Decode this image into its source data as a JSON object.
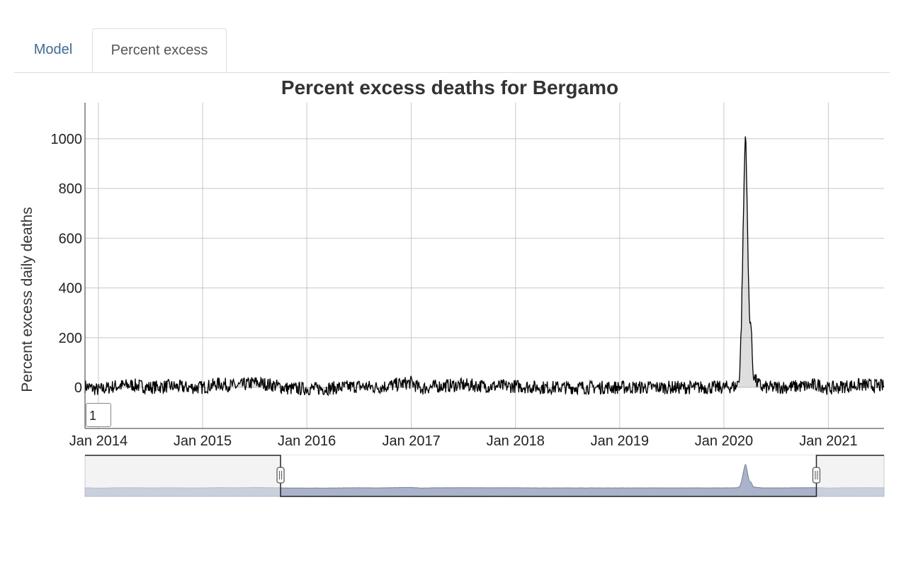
{
  "tabs": [
    {
      "label": "Model",
      "active": false
    },
    {
      "label": "Percent excess",
      "active": true
    }
  ],
  "roller_value": "1",
  "chart_data": {
    "type": "line",
    "title": "Percent excess deaths for Bergamo",
    "xlabel": "",
    "ylabel": "Percent excess daily deaths",
    "x_range": [
      "2013-11-15",
      "2021-07-15"
    ],
    "ylim": [
      -165,
      1145
    ],
    "grid": true,
    "fill_below": true,
    "x_ticks": [
      "Jan 2014",
      "Jan 2015",
      "Jan 2016",
      "Jan 2017",
      "Jan 2018",
      "Jan 2019",
      "Jan 2020",
      "Jan 2021"
    ],
    "x_tick_dates": [
      "2014-01-01",
      "2015-01-01",
      "2016-01-01",
      "2017-01-01",
      "2018-01-01",
      "2019-01-01",
      "2020-01-01",
      "2021-01-01"
    ],
    "y_ticks": [
      0,
      200,
      400,
      600,
      800,
      1000
    ],
    "series": [
      {
        "color": "#000000",
        "points": [
          [
            "2013-11-15",
            5
          ],
          [
            "2014-01-01",
            -10
          ],
          [
            "2014-03-01",
            5
          ],
          [
            "2014-05-01",
            10
          ],
          [
            "2014-07-01",
            0
          ],
          [
            "2014-09-01",
            5
          ],
          [
            "2014-11-01",
            0
          ],
          [
            "2015-01-01",
            0
          ],
          [
            "2015-03-01",
            15
          ],
          [
            "2015-05-01",
            5
          ],
          [
            "2015-07-01",
            20
          ],
          [
            "2015-09-01",
            10
          ],
          [
            "2015-11-01",
            -5
          ],
          [
            "2016-01-01",
            -5
          ],
          [
            "2016-03-01",
            -5
          ],
          [
            "2016-05-01",
            0
          ],
          [
            "2016-07-01",
            5
          ],
          [
            "2016-09-01",
            0
          ],
          [
            "2016-11-01",
            10
          ],
          [
            "2017-01-01",
            20
          ],
          [
            "2017-02-01",
            -5
          ],
          [
            "2017-04-01",
            5
          ],
          [
            "2017-07-01",
            10
          ],
          [
            "2017-10-01",
            5
          ],
          [
            "2018-01-01",
            5
          ],
          [
            "2018-04-01",
            0
          ],
          [
            "2018-07-01",
            0
          ],
          [
            "2018-10-01",
            0
          ],
          [
            "2019-01-01",
            0
          ],
          [
            "2019-04-01",
            0
          ],
          [
            "2019-07-01",
            0
          ],
          [
            "2019-10-01",
            0
          ],
          [
            "2020-01-01",
            0
          ],
          [
            "2020-02-15",
            5
          ],
          [
            "2020-02-25",
            50
          ],
          [
            "2020-03-02",
            250
          ],
          [
            "2020-03-08",
            600
          ],
          [
            "2020-03-13",
            900
          ],
          [
            "2020-03-17",
            1040
          ],
          [
            "2020-03-21",
            850
          ],
          [
            "2020-03-25",
            550
          ],
          [
            "2020-03-30",
            300
          ],
          [
            "2020-04-05",
            250
          ],
          [
            "2020-04-12",
            60
          ],
          [
            "2020-04-25",
            20
          ],
          [
            "2020-05-15",
            0
          ],
          [
            "2020-07-01",
            0
          ],
          [
            "2020-10-01",
            5
          ],
          [
            "2020-12-01",
            10
          ],
          [
            "2021-01-01",
            -5
          ],
          [
            "2021-03-01",
            5
          ],
          [
            "2021-05-01",
            10
          ],
          [
            "2021-07-15",
            5
          ]
        ]
      }
    ],
    "range_selector": {
      "selected_range": [
        "2015-10-01",
        "2020-11-20"
      ]
    }
  }
}
